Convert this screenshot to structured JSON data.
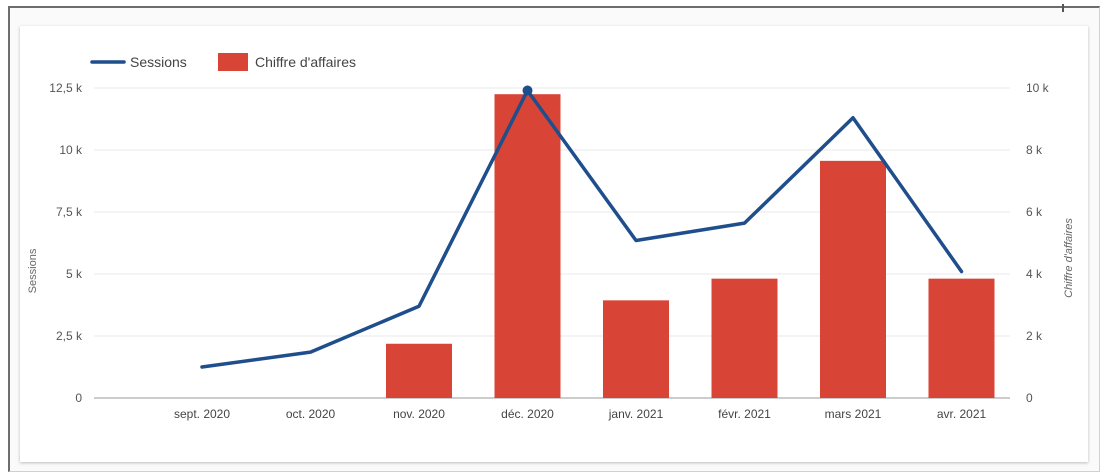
{
  "chart_data": {
    "type": "bar+line",
    "categories": [
      "sept. 2020",
      "oct. 2020",
      "nov. 2020",
      "déc. 2020",
      "janv. 2021",
      "févr. 2021",
      "mars 2021",
      "avr. 2021"
    ],
    "series": [
      {
        "name": "Sessions",
        "type": "line",
        "axis": "left",
        "color": "#1f4e8c",
        "values": [
          1250,
          1850,
          3700,
          12400,
          6350,
          7050,
          11300,
          5100
        ]
      },
      {
        "name": "Chiffre d'affaires",
        "type": "bar",
        "axis": "right",
        "color": "#d84436",
        "values": [
          0,
          0,
          1750,
          9800,
          3150,
          3850,
          7650,
          3850
        ]
      }
    ],
    "left_axis": {
      "label": "Sessions",
      "ticks": [
        "0",
        "2,5 k",
        "5 k",
        "7,5 k",
        "10 k",
        "12,5 k"
      ],
      "range": [
        0,
        12500
      ]
    },
    "right_axis": {
      "label": "Chiffre d'affaires",
      "ticks": [
        "0",
        "2 k",
        "4 k",
        "6 k",
        "8 k",
        "10 k"
      ],
      "range": [
        0,
        10000
      ]
    },
    "grid": true,
    "legend": "top-left"
  }
}
